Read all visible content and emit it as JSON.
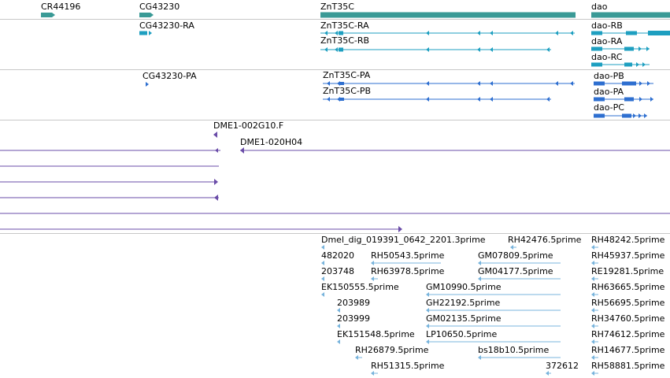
{
  "colors": {
    "gene": "#3a9a96",
    "transcript": "#1e9fc0",
    "protein": "#2e6fd0",
    "clone": "#6a4ca8",
    "est": "#78b4dc",
    "separator": "#c8c8c8",
    "text": "#000000"
  },
  "genes": [
    {
      "name": "CR44196"
    },
    {
      "name": "CG43230"
    },
    {
      "name": "ZnT35C"
    },
    {
      "name": "dao"
    }
  ],
  "transcripts": [
    {
      "name": "CG43230-RA"
    },
    {
      "name": "ZnT35C-RA"
    },
    {
      "name": "ZnT35C-RB"
    },
    {
      "name": "dao-RB"
    },
    {
      "name": "dao-RA"
    },
    {
      "name": "dao-RC"
    }
  ],
  "proteins": [
    {
      "name": "CG43230-PA"
    },
    {
      "name": "ZnT35C-PA"
    },
    {
      "name": "ZnT35C-PB"
    },
    {
      "name": "dao-PB"
    },
    {
      "name": "dao-PA"
    },
    {
      "name": "dao-PC"
    }
  ],
  "clones": [
    {
      "name": "DME1-002G10.F"
    },
    {
      "name": "DME1-020H04"
    }
  ],
  "ests": [
    {
      "name": "Dmel_dig_019391_0642_2201.3prime"
    },
    {
      "name": "RH42476.5prime"
    },
    {
      "name": "RH48242.5prime"
    },
    {
      "name": "482020"
    },
    {
      "name": "RH50543.5prime"
    },
    {
      "name": "GM07809.5prime"
    },
    {
      "name": "RH45937.5prime"
    },
    {
      "name": "203748"
    },
    {
      "name": "RH63978.5prime"
    },
    {
      "name": "GM04177.5prime"
    },
    {
      "name": "RE19281.5prime"
    },
    {
      "name": "EK150555.5prime"
    },
    {
      "name": "GM10990.5prime"
    },
    {
      "name": "RH63665.5prime"
    },
    {
      "name": "203989"
    },
    {
      "name": "GH22192.5prime"
    },
    {
      "name": "RH56695.5prime"
    },
    {
      "name": "203999"
    },
    {
      "name": "GM02135.5prime"
    },
    {
      "name": "RH34760.5prime"
    },
    {
      "name": "EK151548.5prime"
    },
    {
      "name": "LP10650.5prime"
    },
    {
      "name": "RH74612.5prime"
    },
    {
      "name": "RH26879.5prime"
    },
    {
      "name": "bs18b10.5prime"
    },
    {
      "name": "RH14677.5prime"
    },
    {
      "name": "RH51315.5prime"
    },
    {
      "name": "372612"
    },
    {
      "name": "RH58881.5prime"
    }
  ]
}
